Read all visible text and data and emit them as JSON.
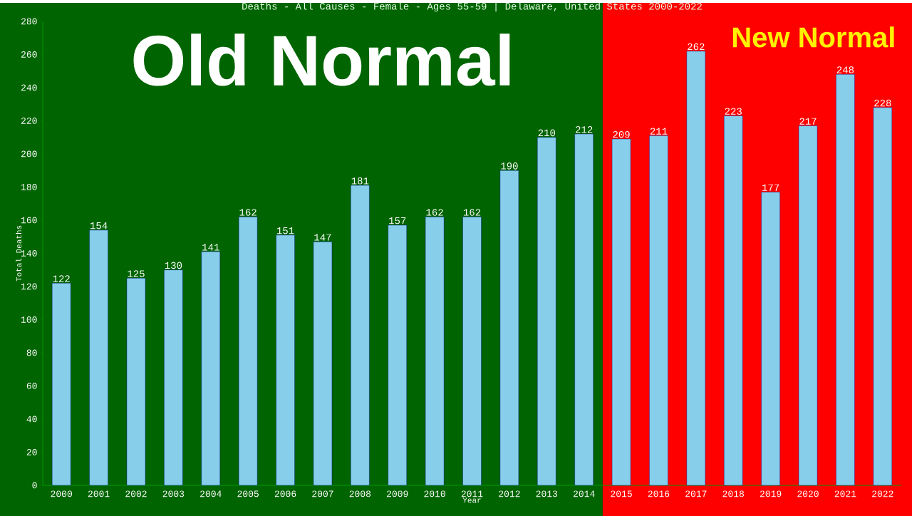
{
  "chart_data": {
    "type": "bar",
    "title": "Deaths - All Causes - Female - Ages 55-59 | Delaware, United States 2000-2022",
    "xlabel": "Year",
    "ylabel": "Total Deaths",
    "categories": [
      "2000",
      "2001",
      "2002",
      "2003",
      "2004",
      "2005",
      "2006",
      "2007",
      "2008",
      "2009",
      "2010",
      "2011",
      "2012",
      "2013",
      "2014",
      "2015",
      "2016",
      "2017",
      "2018",
      "2019",
      "2020",
      "2021",
      "2022"
    ],
    "values": [
      122,
      154,
      125,
      130,
      141,
      162,
      151,
      147,
      181,
      157,
      162,
      162,
      190,
      210,
      212,
      209,
      211,
      262,
      223,
      177,
      217,
      248,
      228
    ],
    "color": "#87ceeb",
    "data_labels": true,
    "ylim": [
      0,
      280
    ],
    "yticks": [
      0,
      20,
      40,
      60,
      80,
      100,
      120,
      140,
      160,
      180,
      200,
      220,
      240,
      260,
      280
    ],
    "bands": [
      {
        "axis": "x",
        "from": "2000",
        "to": "2014",
        "label": "Old Normal",
        "color": "#006400"
      },
      {
        "axis": "x",
        "from": "2015",
        "to": "2022",
        "label": "New Normal",
        "color": "#ff0000"
      }
    ],
    "grid": false
  }
}
